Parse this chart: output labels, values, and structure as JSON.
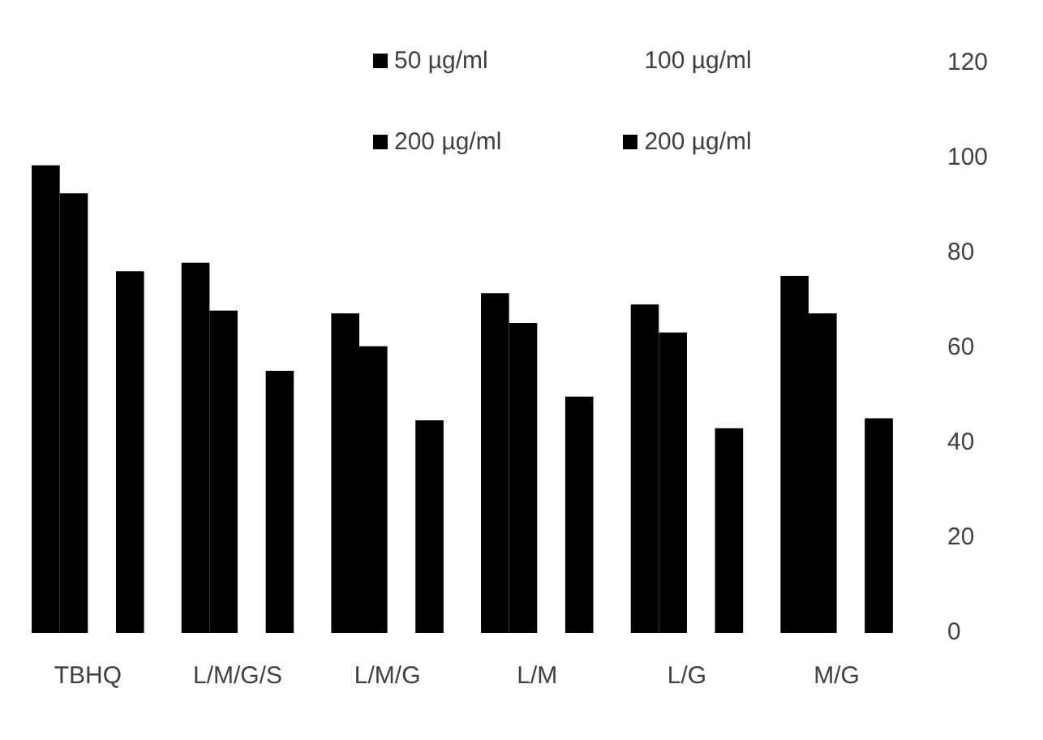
{
  "chart_data": {
    "type": "bar",
    "categories": [
      "TBHQ",
      "L/M/G/S",
      "L/M/G",
      "L/M",
      "L/G",
      "M/G"
    ],
    "series": [
      {
        "name": "50 µg/ml",
        "color": "#000000",
        "values": [
          98.5,
          78,
          67.3,
          71.6,
          69.2,
          75.2
        ]
      },
      {
        "name": "200 µg/ml",
        "color": "#000000",
        "values": [
          92.6,
          67.9,
          60.4,
          65.3,
          63.3,
          67.3
        ]
      },
      {
        "name": "100 µg/ml",
        "values": [
          null,
          null,
          null,
          null,
          null,
          null
        ]
      },
      {
        "name": "200 µg/ml",
        "color": "#000000",
        "values": [
          76.2,
          55.2,
          44.8,
          49.8,
          43.1,
          45.2
        ]
      }
    ],
    "ylim": [
      0,
      120
    ],
    "yticks": [
      0,
      20,
      40,
      60,
      80,
      100,
      120
    ],
    "grid": false,
    "legend": "top"
  }
}
